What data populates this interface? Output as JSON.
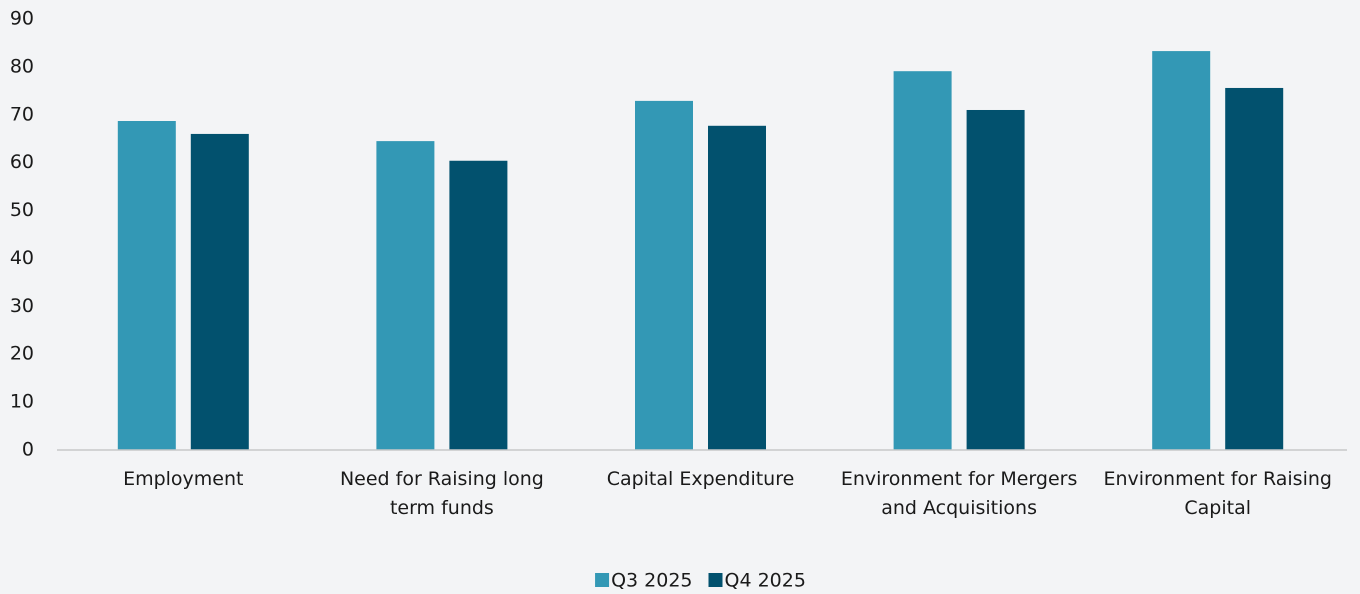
{
  "chart_data": {
    "type": "bar",
    "categories": [
      "Employment",
      "Need for Raising long term funds",
      "Capital Expenditure",
      "Environment for Mergers and Acquisitions",
      "Environment for Raising Capital"
    ],
    "series": [
      {
        "name": "Q3 2025",
        "color": "#3398b5",
        "values": [
          68.7,
          64.5,
          72.9,
          79.1,
          83.3
        ]
      },
      {
        "name": "Q4 2025",
        "color": "#02516e",
        "values": [
          66,
          60.4,
          67.7,
          71,
          75.6
        ]
      }
    ],
    "ylim": [
      0,
      90
    ],
    "yticks": [
      0,
      10,
      20,
      30,
      40,
      50,
      60,
      70,
      80,
      90
    ],
    "grid": false,
    "legend": "bottom"
  }
}
